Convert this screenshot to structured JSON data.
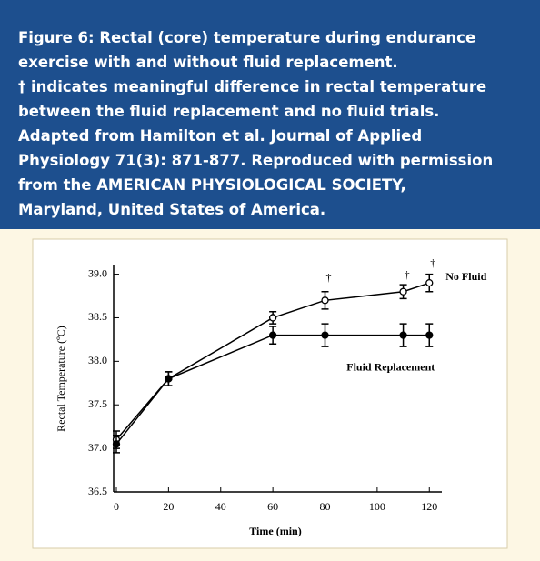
{
  "caption": [
    "Figure 6: Rectal (core) temperature during endurance",
    "exercise with and without fluid replacement.",
    "† indicates meaningful difference in rectal temperature",
    "between the fluid replacement and no fluid trials.",
    "Adapted from Hamilton et al. Journal of Applied",
    "Physiology 71(3): 871-877. Reproduced with permission",
    "from the AMERICAN PHYSIOLOGICAL SOCIETY,",
    "Maryland, United States of America."
  ],
  "chart_data": {
    "type": "line",
    "x_label": "Time (min)",
    "y_label": "Rectal Temperature (ºC)",
    "x": [
      0,
      20,
      60,
      80,
      110,
      120
    ],
    "series": [
      {
        "name": "No Fluid",
        "color": "#000000",
        "marker": "open",
        "values": [
          37.1,
          37.8,
          38.5,
          38.7,
          38.8,
          38.9
        ],
        "errors": [
          0.1,
          0.08,
          0.07,
          0.1,
          0.08,
          0.1
        ]
      },
      {
        "name": "Fluid Replacement",
        "color": "#000000",
        "marker": "filled",
        "values": [
          37.05,
          37.8,
          38.3,
          38.3,
          38.3,
          38.3
        ],
        "errors": [
          0.1,
          0.08,
          0.1,
          0.13,
          0.13,
          0.13
        ]
      }
    ],
    "annotations": [
      {
        "text": "†",
        "x": 80,
        "y": 38.95
      },
      {
        "text": "†",
        "x": 110,
        "y": 38.98
      },
      {
        "text": "†",
        "x": 120,
        "y": 39.12
      }
    ],
    "xlim": [
      0,
      122
    ],
    "ylim": [
      36.5,
      39.1
    ],
    "xticks": [
      0,
      20,
      40,
      60,
      80,
      100,
      120
    ],
    "yticks": [
      36.5,
      {
        "value": 37,
        "label": "37.0"
      },
      37.5,
      {
        "value": 38,
        "label": "38.0"
      },
      38.5,
      {
        "value": 39,
        "label": "39.0"
      }
    ]
  }
}
